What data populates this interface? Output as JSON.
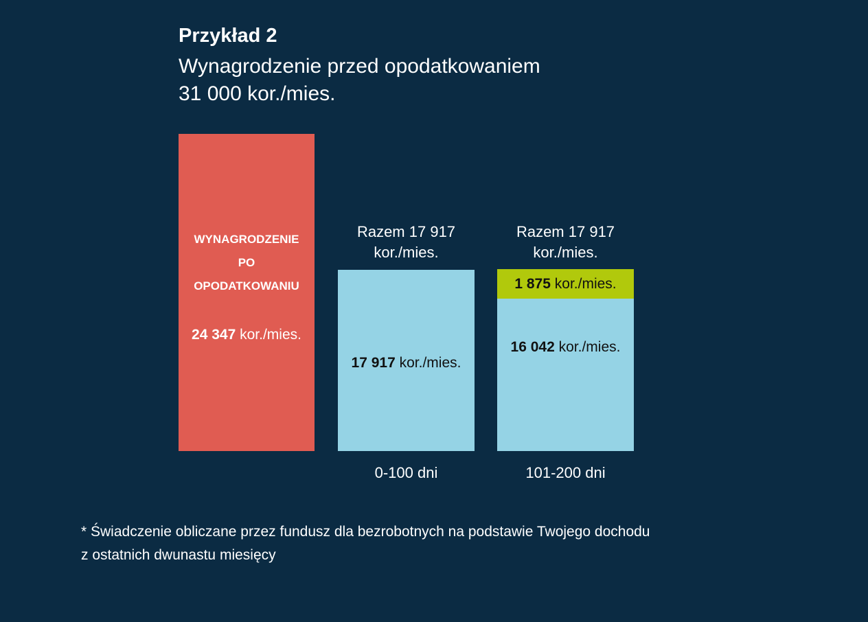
{
  "header": {
    "title": "Przykład 2",
    "subtitle_line1": "Wynagrodzenie przed opodatkowaniem",
    "subtitle_line2": "31 000 kor./mies."
  },
  "chart_data": {
    "type": "bar",
    "title": "Przykład 2",
    "categories": [
      "",
      "0-100 dni",
      "101-200 dni"
    ],
    "unit": "kor./mies.",
    "colors": {
      "net_salary": "#e05c52",
      "benefit": "#95d3e5",
      "supplement": "#b1c90c"
    },
    "net_salary": {
      "label": "WYNAGRODZENIE PO OPODATKOWANIU",
      "value": 24347,
      "value_text": "24 347",
      "unit": "kor./mies."
    },
    "series": [
      {
        "name": "benefit",
        "values": [
          null,
          17917,
          16042
        ],
        "value_texts": [
          "",
          "17 917",
          "16 042"
        ]
      },
      {
        "name": "supplement",
        "values": [
          null,
          0,
          1875
        ],
        "value_texts": [
          "",
          "",
          "1 875"
        ]
      }
    ],
    "totals": [
      "Razem 17 917 kor./mies.",
      "Razem 17 917 kor./mies."
    ],
    "totals_lines": [
      [
        "Razem 17 917",
        "kor./mies."
      ],
      [
        "Razem 17 917",
        "kor./mies."
      ]
    ]
  },
  "footnote": {
    "line1": "* Świadczenie obliczane przez fundusz dla bezrobotnych na podstawie Twojego dochodu",
    "line2": "z ostatnich dwunastu miesięcy"
  }
}
